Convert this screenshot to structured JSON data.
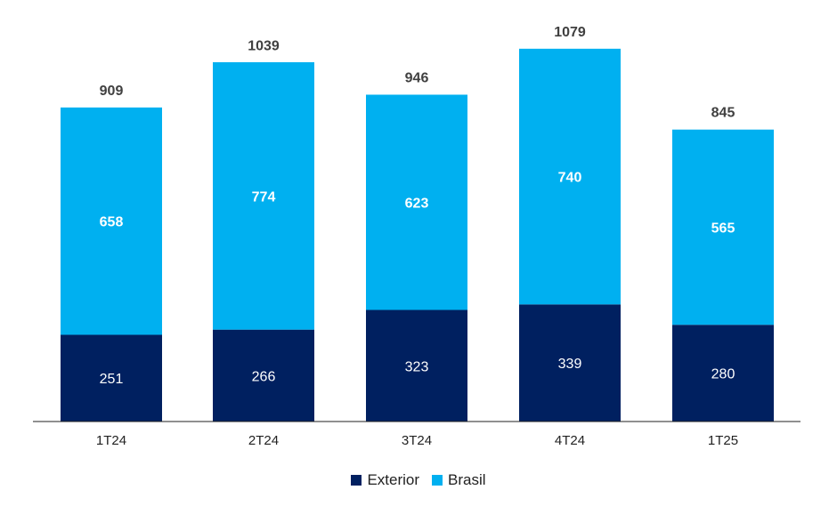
{
  "chart_data": {
    "type": "bar",
    "stacked": true,
    "categories": [
      "1T24",
      "2T24",
      "3T24",
      "4T24",
      "1T25"
    ],
    "series": [
      {
        "name": "Exterior",
        "color": "#002060",
        "values": [
          251,
          266,
          323,
          339,
          280
        ]
      },
      {
        "name": "Brasil",
        "color": "#00B0F0",
        "values": [
          658,
          774,
          623,
          740,
          565
        ]
      }
    ],
    "totals": [
      909,
      1039,
      946,
      1079,
      845
    ],
    "title": "",
    "xlabel": "",
    "ylabel": "",
    "ylim": [
      0,
      1100
    ],
    "grid": false,
    "legend_position": "bottom"
  }
}
